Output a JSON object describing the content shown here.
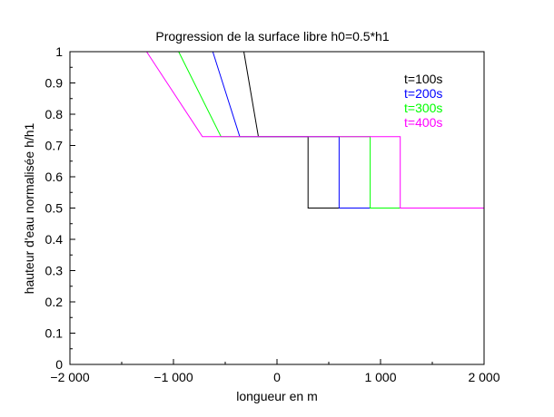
{
  "chart_data": {
    "type": "line",
    "title": "Progression de la surface libre h0=0.5*h1",
    "xlabel": "longueur en m",
    "ylabel": "hauteur d'eau normalisée h/h1",
    "xlim": [
      -2000,
      2000
    ],
    "ylim": [
      0,
      1
    ],
    "x_ticks": [
      -2000,
      -1000,
      0,
      1000,
      2000
    ],
    "x_tick_labels": [
      "−2 000",
      "−1 000",
      "0",
      "1 000",
      "2 000"
    ],
    "y_ticks": [
      0,
      0.1,
      0.2,
      0.3,
      0.4,
      0.5,
      0.6,
      0.7,
      0.8,
      0.9,
      1
    ],
    "y_tick_labels": [
      "0",
      "0.1",
      "0.2",
      "0.3",
      "0.4",
      "0.5",
      "0.6",
      "0.7",
      "0.8",
      "0.9",
      "1"
    ],
    "grid": false,
    "legend_position": "top-right",
    "series": [
      {
        "name": "t=100s",
        "color": "#000000",
        "points": [
          [
            -320,
            1
          ],
          [
            -180,
            0.728
          ],
          [
            300,
            0.728
          ],
          [
            300,
            0.5
          ],
          [
            2000,
            0.5
          ]
        ]
      },
      {
        "name": "t=200s",
        "color": "#0000ff",
        "points": [
          [
            -620,
            1
          ],
          [
            -360,
            0.728
          ],
          [
            600,
            0.728
          ],
          [
            600,
            0.5
          ],
          [
            2000,
            0.5
          ]
        ]
      },
      {
        "name": "t=300s",
        "color": "#00ff00",
        "points": [
          [
            -950,
            1
          ],
          [
            -540,
            0.728
          ],
          [
            900,
            0.728
          ],
          [
            900,
            0.5
          ],
          [
            2000,
            0.5
          ]
        ]
      },
      {
        "name": "t=400s",
        "color": "#ff00ff",
        "points": [
          [
            -1260,
            1
          ],
          [
            -720,
            0.728
          ],
          [
            1190,
            0.728
          ],
          [
            1190,
            0.5
          ],
          [
            2000,
            0.5
          ]
        ]
      }
    ]
  }
}
